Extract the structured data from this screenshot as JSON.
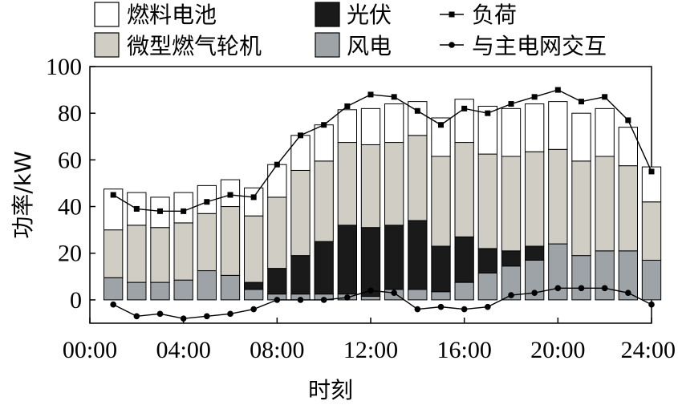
{
  "chart_data": {
    "type": "bar",
    "stacked": true,
    "ylabel": "功率/kW",
    "xlabel": "时刻",
    "ylim": [
      -10,
      100
    ],
    "yticks": [
      "0",
      "20",
      "40",
      "60",
      "80",
      "100"
    ],
    "xticks": [
      "00:00",
      "04:00",
      "08:00",
      "12:00",
      "16:00",
      "20:00",
      "24:00"
    ],
    "hours": [
      1,
      2,
      3,
      4,
      5,
      6,
      7,
      8,
      9,
      10,
      11,
      12,
      13,
      14,
      15,
      16,
      17,
      18,
      19,
      20,
      21,
      22,
      23,
      24
    ],
    "stack_series": [
      {
        "name": "风电",
        "color": "#9ea3a8",
        "values": [
          9.5,
          7.5,
          7.5,
          8.5,
          12.5,
          10.5,
          4.5,
          2.5,
          2.5,
          2.5,
          2.5,
          1.5,
          4.5,
          4.5,
          3.5,
          7.5,
          11.5,
          14.5,
          17,
          24,
          19,
          21,
          21,
          17
        ]
      },
      {
        "name": "光伏",
        "color": "#1a1a1a",
        "values": [
          0,
          0,
          0,
          0,
          0,
          0,
          3,
          11,
          16.5,
          22.5,
          29.5,
          29.5,
          27.5,
          29.5,
          19.5,
          19.5,
          10.5,
          6.5,
          6,
          0,
          0,
          0,
          0,
          0
        ]
      },
      {
        "name": "微型燃气轮机",
        "color": "#cfcdc4",
        "values": [
          20.5,
          24.5,
          23.5,
          24.5,
          24.5,
          29.5,
          28.5,
          30.5,
          36.5,
          34.5,
          35.5,
          35.5,
          35.5,
          36.5,
          38.5,
          40.5,
          40.5,
          40.5,
          40.5,
          40.5,
          40.5,
          40.5,
          36.5,
          25
        ]
      },
      {
        "name": "燃料电池",
        "color": "#ffffff",
        "values": [
          17.5,
          14,
          13,
          13,
          12,
          11.5,
          12,
          14,
          15,
          15.5,
          14,
          15.5,
          16.5,
          14.5,
          16.5,
          18.5,
          20.5,
          20.5,
          20.5,
          20.5,
          20.5,
          20.5,
          16.5,
          15
        ]
      }
    ],
    "line_series": [
      {
        "name": "负荷",
        "marker": "square",
        "values": [
          45,
          39,
          38,
          38,
          42,
          45,
          44,
          58,
          70.5,
          75,
          83,
          88,
          87,
          81,
          75,
          82,
          80,
          84,
          87,
          90,
          85,
          87,
          77,
          55
        ]
      },
      {
        "name": "与主电网交互",
        "marker": "circle",
        "values": [
          -2,
          -7,
          -6,
          -8,
          -7,
          -6,
          -4,
          0,
          0,
          0,
          1,
          4,
          3,
          -4,
          -3,
          -4,
          -3,
          2,
          3,
          5,
          5,
          5,
          3,
          -2
        ]
      }
    ]
  },
  "legend": {
    "fuel_cell": "燃料电池",
    "pv": "光伏",
    "load": "负荷",
    "micro_turbine": "微型燃气轮机",
    "wind": "风电",
    "grid": "与主电网交互"
  }
}
